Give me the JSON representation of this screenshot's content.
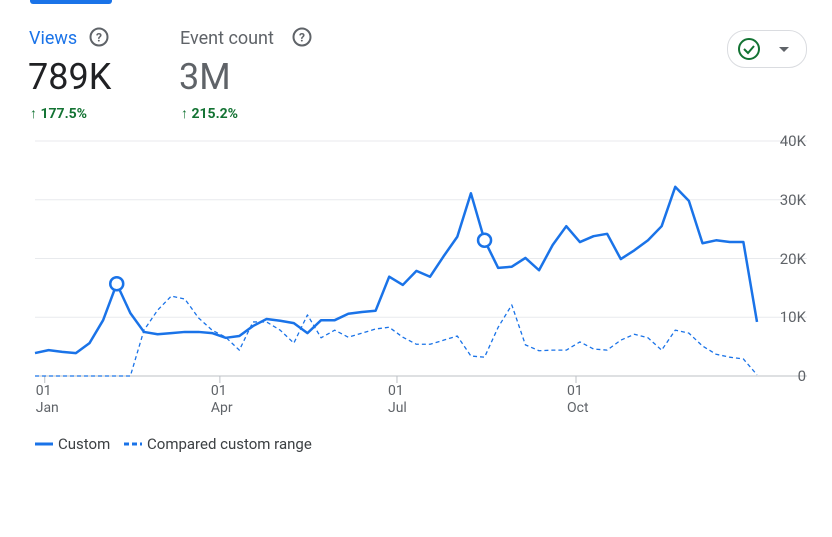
{
  "metrics": [
    {
      "label": "Views",
      "value": "789K",
      "change": "177.5%"
    },
    {
      "label": "Event count",
      "value": "3M",
      "change": "215.2%"
    }
  ],
  "chart_data": {
    "type": "line",
    "x": [
      -5,
      2,
      9,
      16,
      23,
      30,
      37,
      44,
      51,
      58,
      65,
      72,
      79,
      86,
      93,
      100,
      107,
      114,
      121,
      128,
      135,
      142,
      149,
      156,
      163,
      170,
      177,
      184,
      191,
      198,
      205,
      212,
      219,
      226,
      233,
      240,
      247,
      254,
      261,
      268,
      275,
      282,
      289,
      296,
      303,
      310,
      317,
      324,
      331,
      338,
      345,
      352,
      359,
      366
    ],
    "xlim": [
      -5,
      366
    ],
    "xticks": [
      {
        "value": 0,
        "label": "01\nJan"
      },
      {
        "value": 90,
        "label": "01\nApr"
      },
      {
        "value": 181,
        "label": "01\nJul"
      },
      {
        "value": 273,
        "label": "01\nOct"
      }
    ],
    "ylim": [
      0,
      40000
    ],
    "yticks": [
      0,
      {
        "value": 10000,
        "label": "10K"
      },
      {
        "value": 20000,
        "label": "20K"
      },
      {
        "value": 30000,
        "label": "30K"
      },
      {
        "value": 40000,
        "label": "40K"
      }
    ],
    "grid": true,
    "highlighted_points": [
      6,
      33
    ],
    "series": [
      {
        "name": "Custom",
        "color": "#1a73e8",
        "dashed": false,
        "values": [
          3900,
          4400,
          4100,
          3900,
          5600,
          9500,
          15700,
          10700,
          7500,
          7100,
          7300,
          7500,
          7500,
          7300,
          6500,
          6800,
          8500,
          9700,
          9400,
          9000,
          7300,
          9500,
          9500,
          10600,
          10900,
          11100,
          16900,
          15500,
          17900,
          16900,
          20400,
          23700,
          31100,
          23100,
          18400,
          18600,
          20100,
          18000,
          22300,
          25500,
          22800,
          23800,
          24200,
          19900,
          21400,
          23100,
          25500,
          32200,
          29800,
          22600,
          23100,
          22800,
          22800,
          9200
        ]
      },
      {
        "name": "Compared custom range",
        "color": "#1a73e8",
        "dashed": true,
        "values": [
          0,
          0,
          0,
          0,
          0,
          0,
          0,
          0,
          7800,
          11200,
          13600,
          13100,
          9900,
          7800,
          6600,
          4400,
          9200,
          9200,
          7800,
          5600,
          10400,
          6500,
          7800,
          6600,
          7300,
          8000,
          8300,
          6600,
          5400,
          5400,
          6100,
          6800,
          3400,
          3200,
          8300,
          12100,
          5300,
          4300,
          4400,
          4400,
          5800,
          4600,
          4400,
          6100,
          7100,
          6500,
          4400,
          7800,
          7300,
          5100,
          3700,
          3200,
          2900,
          200
        ]
      }
    ]
  }
}
